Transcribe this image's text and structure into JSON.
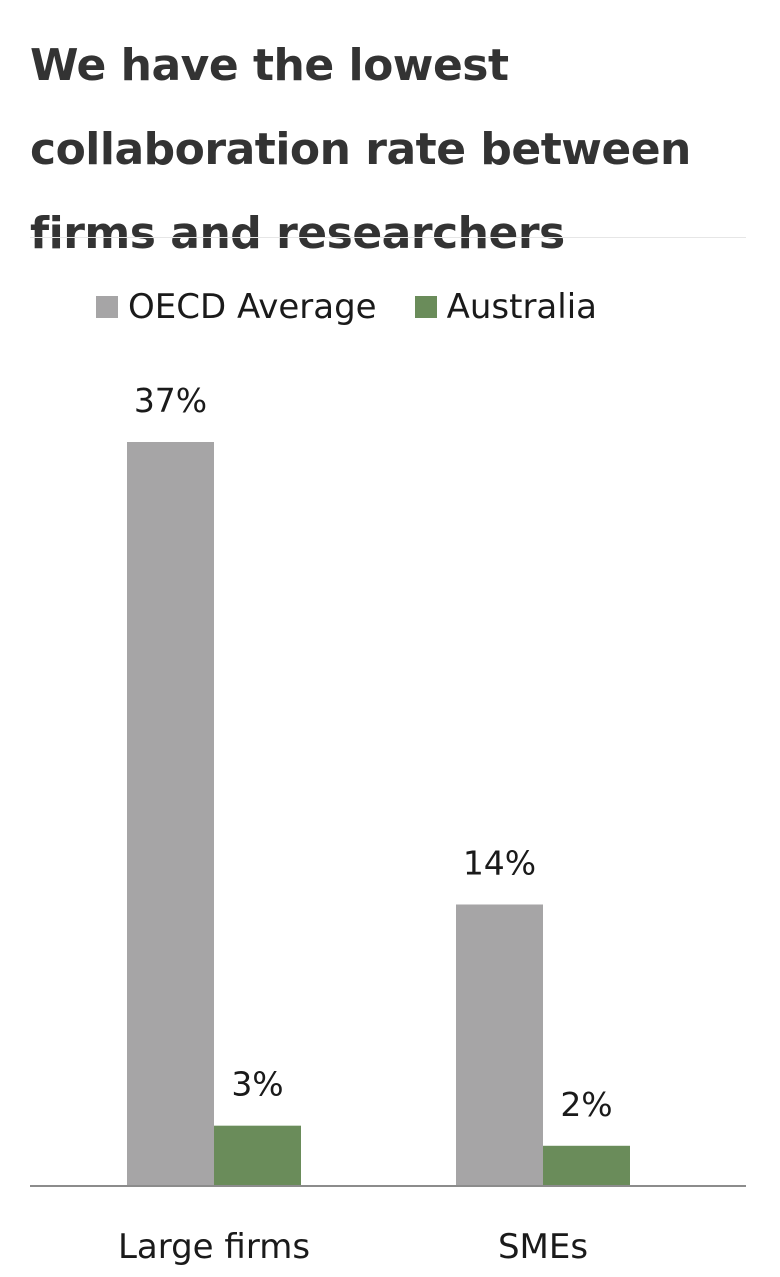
{
  "chart_data": {
    "type": "bar",
    "title": "We have the lowest collaboration rate between firms and researchers",
    "categories": [
      "Large firms",
      "SMEs"
    ],
    "series": [
      {
        "name": "OECD Average",
        "values": [
          37,
          14
        ],
        "labels": [
          "37%",
          "14%"
        ],
        "color": "#a6a5a6"
      },
      {
        "name": "Australia",
        "values": [
          3,
          2
        ],
        "labels": [
          "3%",
          "2%"
        ],
        "color": "#6a8c5a"
      }
    ],
    "ylim": [
      0,
      37
    ],
    "unit": "%",
    "grid": false,
    "legend": "top"
  }
}
